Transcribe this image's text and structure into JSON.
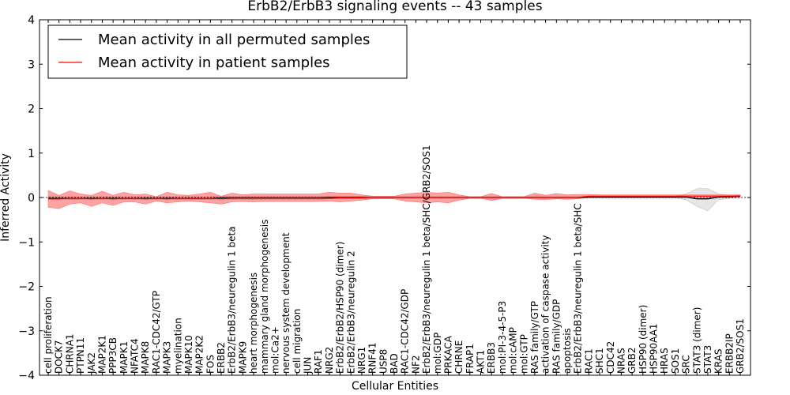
{
  "chart_data": {
    "type": "line",
    "title": "ErbB2/ErbB3 signaling events -- 43 samples",
    "xlabel": "Cellular Entities",
    "ylabel": "Inferred Activity",
    "ylim": [
      -4,
      4
    ],
    "yticks": [
      4,
      3,
      2,
      1,
      0,
      -1,
      -2,
      -3,
      -4
    ],
    "ytick_labels": [
      "4",
      "3",
      "2",
      "1",
      "0",
      "−1",
      "−2",
      "−3",
      "−4"
    ],
    "grid": false,
    "legend_position": "top-left",
    "categories": [
      "cell proliferation",
      "DOCK7",
      "CHRNA1",
      "PTPN11",
      "JAK2",
      "MAP2K1",
      "PPP3CB",
      "MAPK1",
      "NFATC4",
      "MAPK8",
      "RAC1-CDC42/GTP",
      "MAPK3",
      "myelination",
      "MAPK10",
      "MAP2K2",
      "FOS",
      "ERBB2",
      "ErbB2/ErbB3/neuregulin 1 beta",
      "MAPK9",
      "heart morphogenesis",
      "mammary gland morphogenesis",
      "mol:Ca2+",
      "nervous system development",
      "cell migration",
      "JUN",
      "RAF1",
      "NRG2",
      "ErbB2/ErbB2/HSP90 (dimer)",
      "ErbB2/ErbB3/neuregulin 2",
      "NRG1",
      "RNF41",
      "USP8",
      "BAD",
      "RAC1-CDC42/GDP",
      "NF2",
      "ErbB2/ErbB3/neuregulin 1 beta/SHC/GRB2/SOS1",
      "mol:GDP",
      "PRKACA",
      "CHRNE",
      "FRAP1",
      "AKT1",
      "ERBB3",
      "mol:PI-3-4-5-P3",
      "mol:cAMP",
      "mol:GTP",
      "RAS family/GTP",
      "activation of caspase activity",
      "RAS family/GDP",
      "apoptosis",
      "ErbB2/ErbB3/neuregulin 1 beta/SHC",
      "RAC1",
      "SHC1",
      "CDC42",
      "NRAS",
      "GRB2",
      "HSP90 (dimer)",
      "HSP90AA1",
      "HRAS",
      "SOS1",
      "SRC",
      "STAT3 (dimer)",
      "STAT3",
      "KRAS",
      "ERBB2IP",
      "GRB2/SOS1"
    ],
    "series": [
      {
        "name": "Mean activity in all permuted samples",
        "color": "#000000",
        "values": [
          -0.02,
          -0.02,
          -0.02,
          -0.02,
          -0.02,
          -0.02,
          -0.02,
          -0.02,
          -0.02,
          -0.02,
          -0.02,
          -0.02,
          -0.02,
          -0.02,
          -0.02,
          -0.02,
          -0.01,
          -0.01,
          -0.01,
          -0.01,
          -0.01,
          -0.01,
          -0.01,
          -0.01,
          -0.01,
          -0.01,
          0.0,
          0.0,
          0.0,
          0.0,
          0.0,
          0.0,
          0.0,
          0.0,
          0.0,
          0.0,
          0.0,
          0.0,
          0.0,
          0.0,
          0.0,
          0.0,
          0.0,
          0.0,
          0.0,
          0.0,
          0.0,
          0.0,
          0.0,
          0.0,
          0.01,
          0.01,
          0.01,
          0.01,
          0.01,
          0.01,
          0.01,
          0.01,
          0.01,
          0.01,
          -0.03,
          -0.03,
          0.01,
          0.02,
          0.03
        ],
        "band_lower": [
          -0.05,
          -0.05,
          -0.05,
          -0.05,
          -0.05,
          -0.05,
          -0.05,
          -0.05,
          -0.05,
          -0.05,
          -0.05,
          -0.05,
          -0.05,
          -0.05,
          -0.05,
          -0.05,
          -0.04,
          -0.04,
          -0.04,
          -0.04,
          -0.04,
          -0.04,
          -0.04,
          -0.04,
          -0.04,
          -0.04,
          -0.03,
          -0.03,
          -0.03,
          -0.03,
          -0.02,
          -0.02,
          -0.02,
          -0.02,
          -0.02,
          -0.02,
          -0.02,
          -0.02,
          -0.02,
          -0.02,
          -0.02,
          -0.02,
          -0.02,
          -0.02,
          -0.02,
          -0.02,
          -0.02,
          -0.02,
          -0.02,
          -0.02,
          -0.01,
          -0.01,
          -0.01,
          -0.01,
          -0.01,
          -0.01,
          -0.01,
          -0.01,
          -0.01,
          -0.05,
          -0.2,
          -0.3,
          -0.05,
          -0.02,
          0.0
        ],
        "band_upper": [
          0.02,
          0.02,
          0.02,
          0.02,
          0.02,
          0.02,
          0.02,
          0.02,
          0.02,
          0.02,
          0.02,
          0.02,
          0.02,
          0.02,
          0.02,
          0.02,
          0.03,
          0.03,
          0.03,
          0.03,
          0.03,
          0.03,
          0.03,
          0.03,
          0.03,
          0.03,
          0.03,
          0.03,
          0.03,
          0.03,
          0.02,
          0.02,
          0.02,
          0.02,
          0.02,
          0.02,
          0.02,
          0.02,
          0.02,
          0.02,
          0.02,
          0.02,
          0.02,
          0.02,
          0.02,
          0.02,
          0.02,
          0.02,
          0.02,
          0.02,
          0.03,
          0.03,
          0.03,
          0.03,
          0.03,
          0.03,
          0.03,
          0.03,
          0.03,
          0.08,
          0.2,
          0.2,
          0.08,
          0.05,
          0.05
        ]
      },
      {
        "name": "Mean activity in patient samples",
        "color": "#ff0000",
        "values": [
          -0.03,
          -0.03,
          -0.02,
          -0.02,
          -0.03,
          -0.02,
          -0.03,
          -0.02,
          -0.02,
          -0.03,
          -0.02,
          -0.03,
          -0.02,
          -0.02,
          -0.02,
          -0.02,
          -0.03,
          -0.02,
          -0.02,
          -0.02,
          -0.02,
          -0.02,
          -0.02,
          -0.02,
          -0.02,
          -0.02,
          -0.02,
          -0.01,
          -0.01,
          -0.01,
          0.0,
          0.0,
          0.0,
          0.0,
          0.0,
          0.0,
          0.0,
          0.0,
          0.0,
          0.0,
          0.0,
          0.0,
          0.0,
          0.0,
          0.0,
          0.0,
          0.0,
          0.0,
          0.0,
          0.0,
          0.03,
          0.03,
          0.03,
          0.03,
          0.03,
          0.03,
          0.03,
          0.03,
          0.03,
          0.03,
          0.03,
          0.03,
          0.03,
          0.03,
          0.03
        ],
        "band_lower": [
          -0.22,
          -0.25,
          -0.15,
          -0.12,
          -0.2,
          -0.12,
          -0.18,
          -0.1,
          -0.1,
          -0.15,
          -0.08,
          -0.12,
          -0.1,
          -0.08,
          -0.1,
          -0.12,
          -0.15,
          -0.1,
          -0.09,
          -0.1,
          -0.09,
          -0.09,
          -0.09,
          -0.09,
          -0.09,
          -0.09,
          -0.08,
          -0.1,
          -0.08,
          -0.06,
          -0.03,
          -0.03,
          -0.03,
          -0.08,
          -0.1,
          -0.12,
          -0.1,
          -0.12,
          -0.06,
          -0.02,
          -0.02,
          -0.07,
          -0.02,
          -0.02,
          -0.02,
          -0.04,
          -0.05,
          -0.03,
          -0.04,
          -0.03,
          0.0,
          0.0,
          0.0,
          0.0,
          0.0,
          0.0,
          0.0,
          0.0,
          0.0,
          0.0,
          0.0,
          0.0,
          0.0,
          0.0,
          0.0
        ],
        "band_upper": [
          0.16,
          0.05,
          0.15,
          0.08,
          0.05,
          0.14,
          0.05,
          0.12,
          0.06,
          0.08,
          0.02,
          0.12,
          0.06,
          0.05,
          0.08,
          0.12,
          0.03,
          0.1,
          0.06,
          0.08,
          0.08,
          0.08,
          0.08,
          0.08,
          0.08,
          0.08,
          0.12,
          0.1,
          0.1,
          0.06,
          0.03,
          0.03,
          0.03,
          0.08,
          0.1,
          0.12,
          0.1,
          0.12,
          0.06,
          0.02,
          0.02,
          0.09,
          0.02,
          0.02,
          0.02,
          0.1,
          0.05,
          0.09,
          0.06,
          0.07,
          0.07,
          0.06,
          0.06,
          0.06,
          0.06,
          0.06,
          0.06,
          0.06,
          0.06,
          0.06,
          0.06,
          0.06,
          0.06,
          0.06,
          0.06
        ]
      }
    ]
  }
}
